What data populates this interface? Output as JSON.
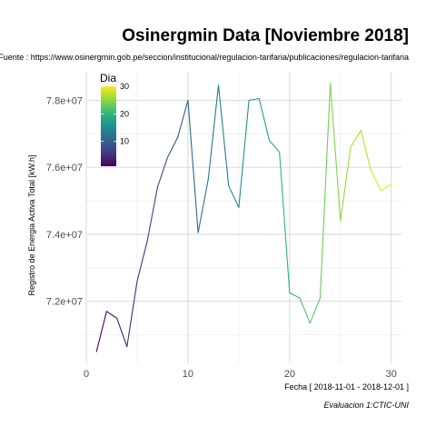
{
  "chart_data": {
    "type": "line",
    "title": "Osinergmin Data [Noviembre 2018]",
    "subtitle": "Fuente : https://www.osinergmin.gob.pe/seccion/institucional/regulacion-tarifaria/publicaciones/regulacion-tarifaria",
    "xlabel": "Fecha [ 2018-11-01 - 2018-12-01 ]",
    "ylabel": "Registro de Energia Activa Total [kW.h]",
    "caption": "Evaluacion 1:CTIC-UNI",
    "x": [
      1,
      2,
      3,
      4,
      5,
      6,
      7,
      8,
      9,
      10,
      11,
      12,
      13,
      14,
      15,
      16,
      17,
      18,
      19,
      20,
      21,
      22,
      23,
      24,
      25,
      26,
      27,
      28,
      29,
      30
    ],
    "y": [
      70500000,
      71700000,
      71500000,
      70650000,
      72600000,
      73800000,
      75400000,
      76300000,
      76900000,
      78000000,
      74050000,
      75650000,
      78450000,
      75450000,
      74800000,
      78000000,
      78050000,
      76800000,
      76450000,
      72250000,
      72100000,
      71350000,
      72100000,
      78500000,
      74400000,
      76600000,
      77100000,
      75900000,
      75300000,
      75500000
    ],
    "xlim": [
      0,
      31
    ],
    "ylim": [
      70150000,
      78850000
    ],
    "x_ticks": [
      0,
      10,
      20,
      30
    ],
    "y_ticks": [
      72000000,
      74000000,
      76000000,
      78000000
    ],
    "y_tick_labels": [
      "7.2e+07",
      "7.4e+07",
      "7.6e+07",
      "7.8e+07"
    ],
    "color_scale": "viridis",
    "legend": {
      "title": "Dia",
      "ticks": [
        10,
        20,
        30
      ],
      "range": [
        1,
        30
      ],
      "placement": "top-left"
    },
    "grid": true
  }
}
